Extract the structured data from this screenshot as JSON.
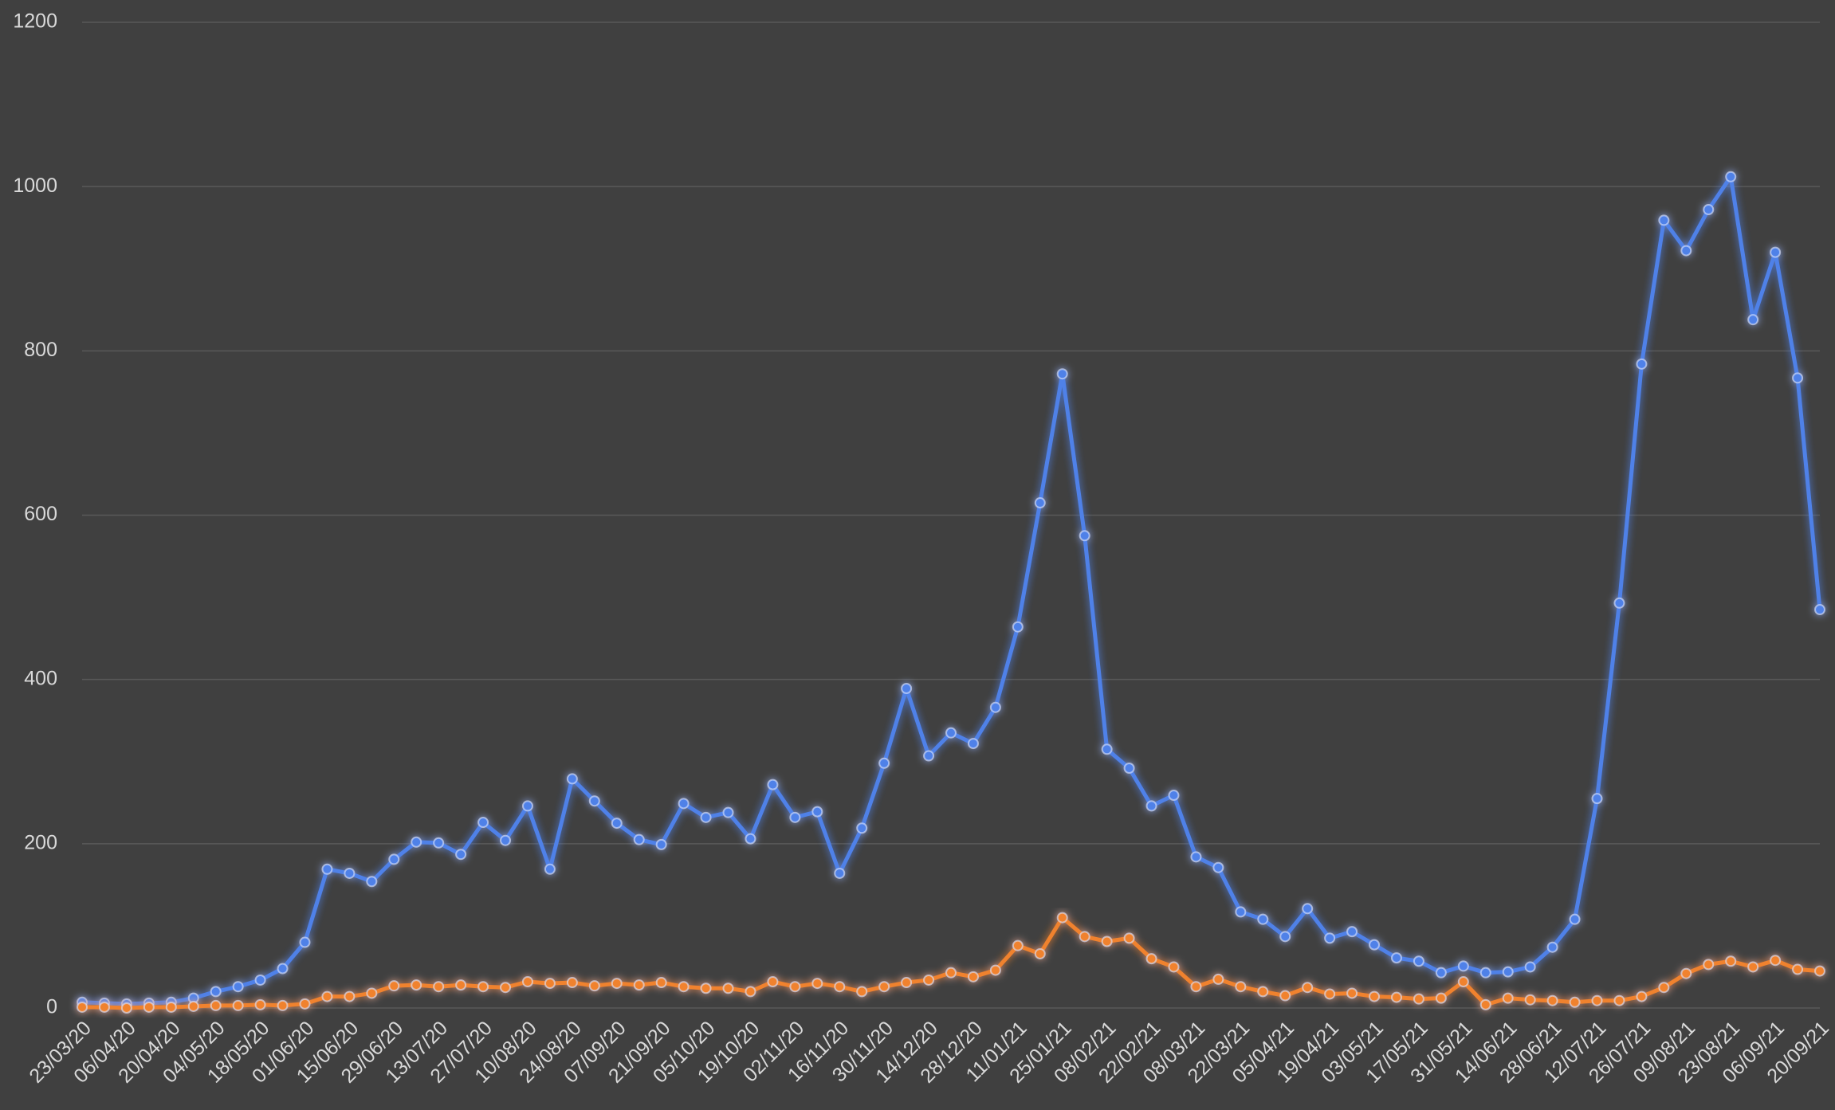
{
  "chart_data": {
    "type": "line",
    "categories": [
      "23/03/20",
      null,
      "06/04/20",
      null,
      "20/04/20",
      null,
      "04/05/20",
      null,
      "18/05/20",
      null,
      "01/06/20",
      null,
      "15/06/20",
      null,
      "29/06/20",
      null,
      "13/07/20",
      null,
      "27/07/20",
      null,
      "10/08/20",
      null,
      "24/08/20",
      null,
      "07/09/20",
      null,
      "21/09/20",
      null,
      "05/10/20",
      null,
      "19/10/20",
      null,
      "02/11/20",
      null,
      "16/11/20",
      null,
      "30/11/20",
      null,
      "14/12/20",
      null,
      "28/12/20",
      null,
      "11/01/21",
      null,
      "25/01/21",
      null,
      "08/02/21",
      null,
      "22/02/21",
      null,
      "08/03/21",
      null,
      "22/03/21",
      null,
      "05/04/21",
      null,
      "19/04/21",
      null,
      "03/05/21",
      null,
      "17/05/21",
      null,
      "31/05/21",
      null,
      "14/06/21",
      null,
      "28/06/21",
      null,
      "12/07/21",
      null,
      "26/07/21",
      null,
      "09/08/21",
      null,
      "23/08/21",
      null,
      "06/09/21",
      null,
      "20/09/21"
    ],
    "series": [
      {
        "color": "#4f81e8",
        "values": [
          7,
          6,
          5,
          6,
          7,
          12,
          20,
          26,
          34,
          48,
          80,
          169,
          164,
          154,
          181,
          202,
          201,
          187,
          226,
          204,
          246,
          169,
          279,
          252,
          225,
          205,
          199,
          249,
          232,
          238,
          206,
          272,
          232,
          239,
          164,
          219,
          298,
          389,
          307,
          335,
          322,
          366,
          464,
          615,
          772,
          575,
          315,
          292,
          246,
          259,
          184,
          171,
          117,
          108,
          87,
          121,
          85,
          93,
          77,
          61,
          57,
          43,
          51,
          43,
          44,
          50,
          74,
          108,
          255,
          493,
          784,
          959,
          922,
          972,
          1012,
          838,
          920,
          767,
          485
        ]
      },
      {
        "color": "#f0822e",
        "values": [
          1,
          1,
          0,
          1,
          1,
          2,
          3,
          3,
          4,
          3,
          5,
          14,
          14,
          18,
          27,
          28,
          26,
          28,
          26,
          25,
          32,
          30,
          31,
          27,
          30,
          28,
          31,
          26,
          24,
          24,
          20,
          32,
          26,
          30,
          26,
          20,
          26,
          31,
          34,
          43,
          38,
          46,
          76,
          66,
          110,
          87,
          81,
          85,
          60,
          50,
          26,
          35,
          26,
          20,
          15,
          25,
          17,
          18,
          14,
          13,
          11,
          12,
          32,
          4,
          12,
          10,
          9,
          7,
          9,
          9,
          14,
          25,
          42,
          53,
          57,
          50,
          58,
          47,
          45
        ]
      }
    ],
    "ylim": [
      0,
      1200
    ],
    "yticks": [
      0,
      200,
      400,
      600,
      800,
      1000,
      1200
    ],
    "grid": true
  }
}
